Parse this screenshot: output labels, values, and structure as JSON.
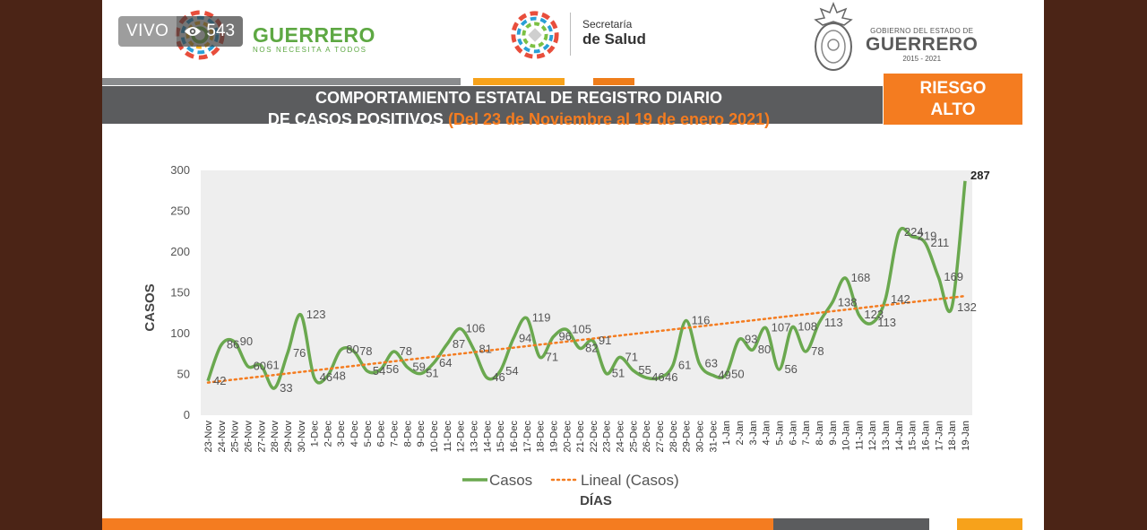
{
  "overlay": {
    "live_label": "VIVO",
    "viewer_count": "543"
  },
  "header": {
    "brand_left_title": "GUERRERO",
    "brand_left_subtitle": "NOS NECESITA A TODOS",
    "secretaria_line1": "Secretaría",
    "secretaria_line2": "de Salud",
    "gov_line1": "GOBIERNO DEL ESTADO DE",
    "gov_line2": "GUERRERO",
    "gov_line3": "2015 - 2021"
  },
  "banner": {
    "title_line1": "COMPORTAMIENTO ESTATAL DE REGISTRO DIARIO",
    "title_line2": "DE CASOS POSITIVOS",
    "title_range": "(Del 23 de Noviembre al 19 de enero 2021)",
    "risk_line1": "RIESGO",
    "risk_line2": "ALTO"
  },
  "colors": {
    "series": "#6aa84f",
    "trend": "#f47c20",
    "plot_bg": "#eeeeee",
    "banner": "#5b5c5e",
    "accent": "#f47c20"
  },
  "chart_data": {
    "type": "line",
    "xlabel": "DÍAS",
    "ylabel": "CASOS",
    "ylim": [
      0,
      300
    ],
    "yticks": [
      0,
      50,
      100,
      150,
      200,
      250,
      300
    ],
    "categories": [
      "23-Nov",
      "24-Nov",
      "25-Nov",
      "26-Nov",
      "27-Nov",
      "28-Nov",
      "29-Nov",
      "30-Nov",
      "1-Dec",
      "2-Dec",
      "3-Dec",
      "4-Dec",
      "5-Dec",
      "6-Dec",
      "7-Dec",
      "8-Dec",
      "9-Dec",
      "10-Dec",
      "11-Dec",
      "12-Dec",
      "13-Dec",
      "14-Dec",
      "15-Dec",
      "16-Dec",
      "17-Dec",
      "18-Dec",
      "19-Dec",
      "20-Dec",
      "21-Dec",
      "22-Dec",
      "23-Dec",
      "24-Dec",
      "25-Dec",
      "26-Dec",
      "27-Dec",
      "28-Dec",
      "29-Dec",
      "30-Dec",
      "31-Dec",
      "1-Jan",
      "2-Jan",
      "3-Jan",
      "4-Jan",
      "5-Jan",
      "6-Jan",
      "7-Jan",
      "8-Jan",
      "9-Jan",
      "10-Jan",
      "11-Jan",
      "12-Jan",
      "13-Jan",
      "14-Jan",
      "15-Jan",
      "16-Jan",
      "17-Jan",
      "18-Jan",
      "19-Jan"
    ],
    "series": [
      {
        "name": "Casos",
        "values": [
          42,
          86,
          90,
          60,
          61,
          33,
          76,
          123,
          46,
          48,
          80,
          78,
          54,
          56,
          78,
          59,
          51,
          64,
          87,
          106,
          81,
          46,
          54,
          94,
          119,
          71,
          96,
          105,
          82,
          91,
          51,
          71,
          55,
          46,
          46,
          61,
          116,
          63,
          49,
          50,
          93,
          80,
          107,
          56,
          108,
          78,
          113,
          138,
          168,
          123,
          113,
          142,
          224,
          219,
          211,
          169,
          132,
          287
        ]
      }
    ],
    "trend": {
      "name": "Lineal (Casos)",
      "type": "linear",
      "start": 40,
      "end": 146
    },
    "legend_position": "bottom",
    "grid": false
  }
}
